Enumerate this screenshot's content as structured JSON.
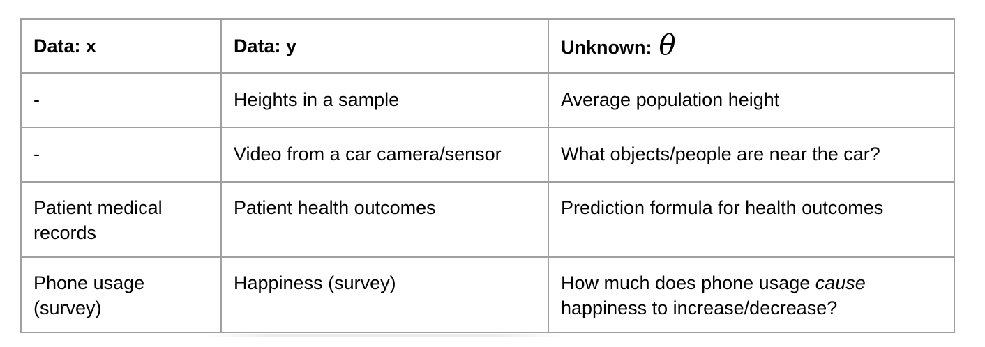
{
  "table": {
    "headers": {
      "col1": "Data: x",
      "col2": "Data: y",
      "col3": "Unknown:",
      "col3_symbol": "θ"
    },
    "rows": [
      {
        "x": "-",
        "y": "Heights in a sample",
        "unknown": "Average population height"
      },
      {
        "x": "-",
        "y": "Video from a car camera/sensor",
        "unknown": "What objects/people are near the car?"
      },
      {
        "x": "Patient medical records",
        "y": "Patient health outcomes",
        "unknown": "Prediction formula for health outcomes"
      },
      {
        "x": "Phone usage (survey)",
        "y": "Happiness (survey)",
        "unknown_before": "How much does phone usage ",
        "unknown_emphasis": "cause",
        "unknown_after": " happiness to increase/decrease?"
      }
    ]
  }
}
